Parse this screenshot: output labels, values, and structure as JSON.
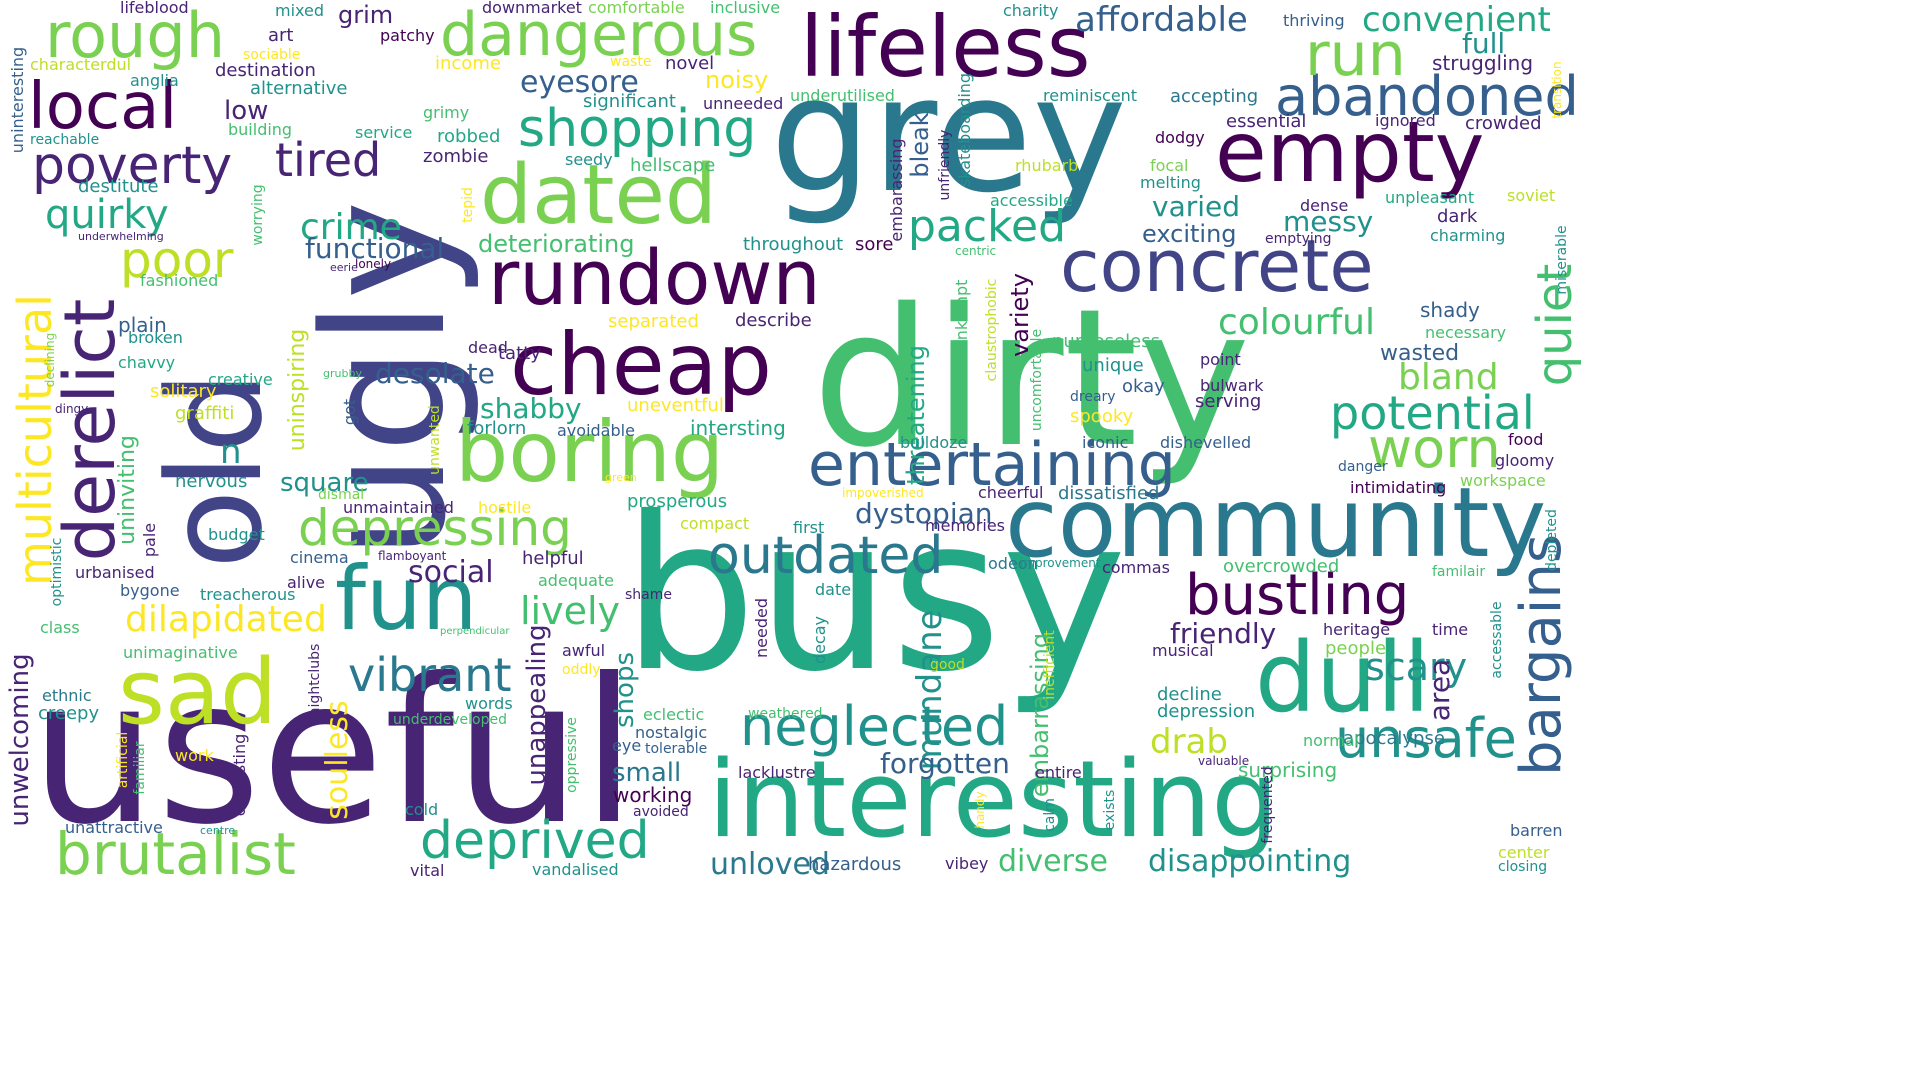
{
  "palette": {
    "dark_purple": "#440154",
    "indigo": "#482475",
    "slate": "#414487",
    "blue": "#355f8d",
    "teal_blue": "#2a788e",
    "teal": "#21918c",
    "sea_green": "#22a884",
    "green": "#44bf70",
    "light_green": "#7ad151",
    "lime": "#bddf26",
    "yellow": "#fde725"
  },
  "words": [
    {
      "text": "busy",
      "color": "sea_green"
    },
    {
      "text": "useful",
      "color": "indigo"
    },
    {
      "text": "dirty",
      "color": "green"
    },
    {
      "text": "ugly",
      "color": "slate"
    },
    {
      "text": "grey",
      "color": "teal_blue"
    },
    {
      "text": "old",
      "color": "slate"
    },
    {
      "text": "interesting",
      "color": "sea_green"
    },
    {
      "text": "community",
      "color": "teal_blue"
    },
    {
      "text": "lifeless",
      "color": "dark_purple"
    },
    {
      "text": "empty",
      "color": "dark_purple"
    },
    {
      "text": "boring",
      "color": "light_green"
    },
    {
      "text": "dull",
      "color": "sea_green"
    },
    {
      "text": "cheap",
      "color": "dark_purple"
    },
    {
      "text": "fun",
      "color": "teal"
    },
    {
      "text": "sad",
      "color": "lime"
    },
    {
      "text": "dated",
      "color": "light_green"
    },
    {
      "text": "rundown",
      "color": "dark_purple"
    },
    {
      "text": "concrete",
      "color": "slate"
    },
    {
      "text": "derelict",
      "color": "indigo"
    },
    {
      "text": "brutalist",
      "color": "light_green"
    },
    {
      "text": "dangerous",
      "color": "light_green"
    },
    {
      "text": "entertaining",
      "color": "blue"
    },
    {
      "text": "rough",
      "color": "light_green"
    },
    {
      "text": "multicultural",
      "color": "yellow"
    },
    {
      "text": "bustling",
      "color": "dark_purple"
    },
    {
      "text": "abandoned",
      "color": "blue"
    },
    {
      "text": "neglected",
      "color": "teal"
    },
    {
      "text": "unsafe",
      "color": "teal"
    },
    {
      "text": "local",
      "color": "dark_purple"
    },
    {
      "text": "run",
      "color": "light_green"
    },
    {
      "text": "bargains",
      "color": "blue"
    },
    {
      "text": "depressing",
      "color": "light_green"
    },
    {
      "text": "outdated",
      "color": "teal_blue"
    },
    {
      "text": "deprived",
      "color": "sea_green"
    },
    {
      "text": "poverty",
      "color": "indigo"
    },
    {
      "text": "shopping",
      "color": "sea_green"
    },
    {
      "text": "worn",
      "color": "light_green"
    },
    {
      "text": "tired",
      "color": "indigo"
    },
    {
      "text": "poor",
      "color": "lime"
    },
    {
      "text": "quiet",
      "color": "green"
    },
    {
      "text": "potential",
      "color": "sea_green"
    },
    {
      "text": "vibrant",
      "color": "teal_blue"
    },
    {
      "text": "packed",
      "color": "sea_green"
    },
    {
      "text": "quirky",
      "color": "sea_green"
    },
    {
      "text": "dilapidated",
      "color": "yellow"
    },
    {
      "text": "crime",
      "color": "sea_green"
    },
    {
      "text": "colourful",
      "color": "green"
    },
    {
      "text": "lively",
      "color": "green"
    },
    {
      "text": "affordable",
      "color": "blue"
    },
    {
      "text": "convenient",
      "color": "sea_green"
    },
    {
      "text": "scary",
      "color": "teal"
    },
    {
      "text": "mundane",
      "color": "teal"
    },
    {
      "text": "soulless",
      "color": "yellow"
    },
    {
      "text": "bland",
      "color": "light_green"
    },
    {
      "text": "drab",
      "color": "lime"
    },
    {
      "text": "disappointing",
      "color": "teal"
    },
    {
      "text": "diverse",
      "color": "green"
    },
    {
      "text": "unloved",
      "color": "teal_blue"
    },
    {
      "text": "forgotten",
      "color": "blue"
    },
    {
      "text": "friendly",
      "color": "indigo"
    },
    {
      "text": "unappealing",
      "color": "indigo"
    },
    {
      "text": "unwelcoming",
      "color": "indigo"
    },
    {
      "text": "social",
      "color": "indigo"
    },
    {
      "text": "desolate",
      "color": "blue"
    },
    {
      "text": "dystopian",
      "color": "blue"
    },
    {
      "text": "shabby",
      "color": "sea_green"
    },
    {
      "text": "eyesore",
      "color": "blue"
    },
    {
      "text": "varied",
      "color": "teal"
    },
    {
      "text": "messy",
      "color": "teal"
    },
    {
      "text": "functional",
      "color": "blue"
    },
    {
      "text": "deteriorating",
      "color": "green"
    },
    {
      "text": "exciting",
      "color": "blue"
    },
    {
      "text": "full",
      "color": "teal"
    },
    {
      "text": "struggling",
      "color": "indigo"
    },
    {
      "text": "destitute",
      "color": "teal"
    },
    {
      "text": "grim",
      "color": "indigo"
    },
    {
      "text": "low",
      "color": "indigo"
    },
    {
      "text": "noisy",
      "color": "yellow"
    },
    {
      "text": "novel",
      "color": "indigo"
    },
    {
      "text": "wasted",
      "color": "blue"
    },
    {
      "text": "square",
      "color": "teal"
    },
    {
      "text": "shops",
      "color": "teal"
    },
    {
      "text": "area",
      "color": "indigo"
    },
    {
      "text": "small",
      "color": "teal_blue"
    },
    {
      "text": "working",
      "color": "dark_purple"
    },
    {
      "text": "threatening",
      "color": "sea_green"
    },
    {
      "text": "variety",
      "color": "dark_purple"
    },
    {
      "text": "embarrassing",
      "color": "green"
    },
    {
      "text": "bleak",
      "color": "blue"
    },
    {
      "text": "uninspiring",
      "color": "lime"
    },
    {
      "text": "uninviting",
      "color": "green"
    },
    {
      "text": "plain",
      "color": "blue"
    },
    {
      "text": "broken",
      "color": "teal"
    },
    {
      "text": "chavvy",
      "color": "sea_green"
    },
    {
      "text": "creative",
      "color": "sea_green"
    },
    {
      "text": "solitary",
      "color": "yellow"
    },
    {
      "text": "graffiti",
      "color": "lime"
    },
    {
      "text": "budget",
      "color": "teal"
    },
    {
      "text": "nervous",
      "color": "teal"
    },
    {
      "text": "pale",
      "color": "indigo"
    },
    {
      "text": "urbanised",
      "color": "indigo"
    },
    {
      "text": "bygone",
      "color": "blue"
    },
    {
      "text": "treacherous",
      "color": "teal"
    },
    {
      "text": "class",
      "color": "green"
    },
    {
      "text": "unimaginative",
      "color": "green"
    },
    {
      "text": "ethnic",
      "color": "teal_blue"
    },
    {
      "text": "creepy",
      "color": "teal"
    },
    {
      "text": "unattractive",
      "color": "blue"
    },
    {
      "text": "surprising",
      "color": "green"
    },
    {
      "text": "depression",
      "color": "teal"
    },
    {
      "text": "decline",
      "color": "teal"
    },
    {
      "text": "musical",
      "color": "indigo"
    },
    {
      "text": "heritage",
      "color": "indigo"
    },
    {
      "text": "time",
      "color": "indigo"
    },
    {
      "text": "people",
      "color": "light_green"
    },
    {
      "text": "apocalypse",
      "color": "teal_blue"
    },
    {
      "text": "normal",
      "color": "green"
    },
    {
      "text": "overcrowded",
      "color": "green"
    },
    {
      "text": "commas",
      "color": "indigo"
    },
    {
      "text": "odeon",
      "color": "teal_blue"
    },
    {
      "text": "dissatisfied",
      "color": "teal_blue"
    },
    {
      "text": "cheerful",
      "color": "indigo"
    },
    {
      "text": "intimidating",
      "color": "dark_purple"
    },
    {
      "text": "workspace",
      "color": "light_green"
    },
    {
      "text": "gloomy",
      "color": "indigo"
    },
    {
      "text": "food",
      "color": "dark_purple"
    },
    {
      "text": "danger",
      "color": "blue"
    },
    {
      "text": "familair",
      "color": "green"
    },
    {
      "text": "barren",
      "color": "blue"
    },
    {
      "text": "center",
      "color": "lime"
    },
    {
      "text": "closing",
      "color": "teal"
    },
    {
      "text": "accessable",
      "color": "teal"
    },
    {
      "text": "depleted",
      "color": "teal"
    },
    {
      "text": "dishevelled",
      "color": "blue"
    },
    {
      "text": "iconic",
      "color": "blue"
    },
    {
      "text": "bulldoze",
      "color": "teal"
    },
    {
      "text": "serving",
      "color": "indigo"
    },
    {
      "text": "bulwark",
      "color": "indigo"
    },
    {
      "text": "point",
      "color": "indigo"
    },
    {
      "text": "spooky",
      "color": "yellow"
    },
    {
      "text": "dreary",
      "color": "blue"
    },
    {
      "text": "okay",
      "color": "blue"
    },
    {
      "text": "unique",
      "color": "teal"
    },
    {
      "text": "purposeless",
      "color": "green"
    },
    {
      "text": "shady",
      "color": "blue"
    },
    {
      "text": "necessary",
      "color": "green"
    },
    {
      "text": "dark",
      "color": "indigo"
    },
    {
      "text": "charming",
      "color": "teal"
    },
    {
      "text": "miserable",
      "color": "teal"
    },
    {
      "text": "soviet",
      "color": "lime"
    },
    {
      "text": "unpleasant",
      "color": "sea_green"
    },
    {
      "text": "dense",
      "color": "indigo"
    },
    {
      "text": "emptying",
      "color": "indigo"
    },
    {
      "text": "melting",
      "color": "teal"
    },
    {
      "text": "focal",
      "color": "light_green"
    },
    {
      "text": "dodgy",
      "color": "dark_purple"
    },
    {
      "text": "rhubarb",
      "color": "lime"
    },
    {
      "text": "accessible",
      "color": "sea_green"
    },
    {
      "text": "essential",
      "color": "indigo"
    },
    {
      "text": "crowded",
      "color": "indigo"
    },
    {
      "text": "ignored",
      "color": "indigo"
    },
    {
      "text": "accepting",
      "color": "teal_blue"
    },
    {
      "text": "reminiscent",
      "color": "teal"
    },
    {
      "text": "thriving",
      "color": "blue"
    },
    {
      "text": "transition",
      "color": "yellow"
    },
    {
      "text": "charity",
      "color": "teal"
    },
    {
      "text": "significant",
      "color": "teal"
    },
    {
      "text": "unneeded",
      "color": "indigo"
    },
    {
      "text": "underutilised",
      "color": "green"
    },
    {
      "text": "seedy",
      "color": "teal"
    },
    {
      "text": "hellscape",
      "color": "green"
    },
    {
      "text": "embarassing",
      "color": "indigo"
    },
    {
      "text": "skateboarding",
      "color": "teal"
    },
    {
      "text": "unfriendly",
      "color": "indigo"
    },
    {
      "text": "throughout",
      "color": "teal"
    },
    {
      "text": "sore",
      "color": "dark_purple"
    },
    {
      "text": "centric",
      "color": "green"
    },
    {
      "text": "lonely",
      "color": "dark_purple"
    },
    {
      "text": "unkempt",
      "color": "green"
    },
    {
      "text": "claustrophobic",
      "color": "lime"
    },
    {
      "text": "uncomfortable",
      "color": "green"
    },
    {
      "text": "separated",
      "color": "yellow"
    },
    {
      "text": "describe",
      "color": "indigo"
    },
    {
      "text": "tatty",
      "color": "indigo"
    },
    {
      "text": "dead",
      "color": "indigo"
    },
    {
      "text": "forlorn",
      "color": "teal"
    },
    {
      "text": "avoidable",
      "color": "blue"
    },
    {
      "text": "intersting",
      "color": "sea_green"
    },
    {
      "text": "uneventful",
      "color": "yellow"
    },
    {
      "text": "unwanted",
      "color": "lime"
    },
    {
      "text": "got",
      "color": "blue"
    },
    {
      "text": "dismal",
      "color": "light_green"
    },
    {
      "text": "hostile",
      "color": "yellow"
    },
    {
      "text": "unmaintained",
      "color": "indigo"
    },
    {
      "text": "prosperous",
      "color": "sea_green"
    },
    {
      "text": "compact",
      "color": "lime"
    },
    {
      "text": "first",
      "color": "teal"
    },
    {
      "text": "memories",
      "color": "indigo"
    },
    {
      "text": "impoverished",
      "color": "yellow"
    },
    {
      "text": "improvement",
      "color": "teal"
    },
    {
      "text": "cinema",
      "color": "blue"
    },
    {
      "text": "alive",
      "color": "indigo"
    },
    {
      "text": "flamboyant",
      "color": "indigo"
    },
    {
      "text": "helpful",
      "color": "indigo"
    },
    {
      "text": "adequate",
      "color": "green"
    },
    {
      "text": "shame",
      "color": "indigo"
    },
    {
      "text": "date",
      "color": "teal"
    },
    {
      "text": "decay",
      "color": "teal"
    },
    {
      "text": "needed",
      "color": "indigo"
    },
    {
      "text": "awful",
      "color": "indigo"
    },
    {
      "text": "oddly",
      "color": "yellow"
    },
    {
      "text": "eclectic",
      "color": "green"
    },
    {
      "text": "nostalgic",
      "color": "blue"
    },
    {
      "text": "eye",
      "color": "blue"
    },
    {
      "text": "tolerable",
      "color": "blue"
    },
    {
      "text": "oppressive",
      "color": "green"
    },
    {
      "text": "avoided",
      "color": "indigo"
    },
    {
      "text": "lacklustre",
      "color": "indigo"
    },
    {
      "text": "weathered",
      "color": "green"
    },
    {
      "text": "hazardous",
      "color": "blue"
    },
    {
      "text": "vibey",
      "color": "indigo"
    },
    {
      "text": "calm",
      "color": "teal"
    },
    {
      "text": "exists",
      "color": "teal"
    },
    {
      "text": "entire",
      "color": "indigo"
    },
    {
      "text": "inefficient",
      "color": "lime"
    },
    {
      "text": "valuable",
      "color": "indigo"
    },
    {
      "text": "frequented",
      "color": "indigo"
    },
    {
      "text": "handy",
      "color": "yellow"
    },
    {
      "text": "good",
      "color": "lime"
    },
    {
      "text": "vandalised",
      "color": "teal"
    },
    {
      "text": "vital",
      "color": "indigo"
    },
    {
      "text": "cold",
      "color": "teal"
    },
    {
      "text": "nightclubs",
      "color": "indigo"
    },
    {
      "text": "words",
      "color": "teal"
    },
    {
      "text": "underdeveloped",
      "color": "green"
    },
    {
      "text": "perpendicular",
      "color": "green"
    },
    {
      "text": "disgusting",
      "color": "indigo"
    },
    {
      "text": "work",
      "color": "yellow"
    },
    {
      "text": "familiar",
      "color": "green"
    },
    {
      "text": "artificial",
      "color": "yellow"
    },
    {
      "text": "centre",
      "color": "teal"
    },
    {
      "text": "green",
      "color": "yellow"
    },
    {
      "text": "optimistic",
      "color": "teal"
    },
    {
      "text": "declining",
      "color": "light_green"
    },
    {
      "text": "dingy",
      "color": "indigo"
    },
    {
      "text": "grubby",
      "color": "green"
    },
    {
      "text": "n",
      "color": "teal"
    },
    {
      "text": "worrying",
      "color": "green"
    },
    {
      "text": "eerie",
      "color": "indigo"
    },
    {
      "text": "underwhelming",
      "color": "indigo"
    },
    {
      "text": "fashioned",
      "color": "green"
    },
    {
      "text": "uninteresting",
      "color": "blue"
    },
    {
      "text": "reachable",
      "color": "teal"
    },
    {
      "text": "anglia",
      "color": "teal"
    },
    {
      "text": "characterdul",
      "color": "lime"
    },
    {
      "text": "sociable",
      "color": "yellow"
    },
    {
      "text": "art",
      "color": "indigo"
    },
    {
      "text": "destination",
      "color": "indigo"
    },
    {
      "text": "alternative",
      "color": "teal"
    },
    {
      "text": "building",
      "color": "green"
    },
    {
      "text": "lifeblood",
      "color": "indigo"
    },
    {
      "text": "mixed",
      "color": "teal"
    },
    {
      "text": "patchy",
      "color": "dark_purple"
    },
    {
      "text": "income",
      "color": "yellow"
    },
    {
      "text": "waste",
      "color": "yellow"
    },
    {
      "text": "downmarket",
      "color": "indigo"
    },
    {
      "text": "comfortable",
      "color": "light_green"
    },
    {
      "text": "inclusive",
      "color": "green"
    },
    {
      "text": "grimy",
      "color": "green"
    },
    {
      "text": "service",
      "color": "sea_green"
    },
    {
      "text": "robbed",
      "color": "sea_green"
    },
    {
      "text": "zombie",
      "color": "indigo"
    },
    {
      "text": "tepid",
      "color": "yellow"
    }
  ]
}
